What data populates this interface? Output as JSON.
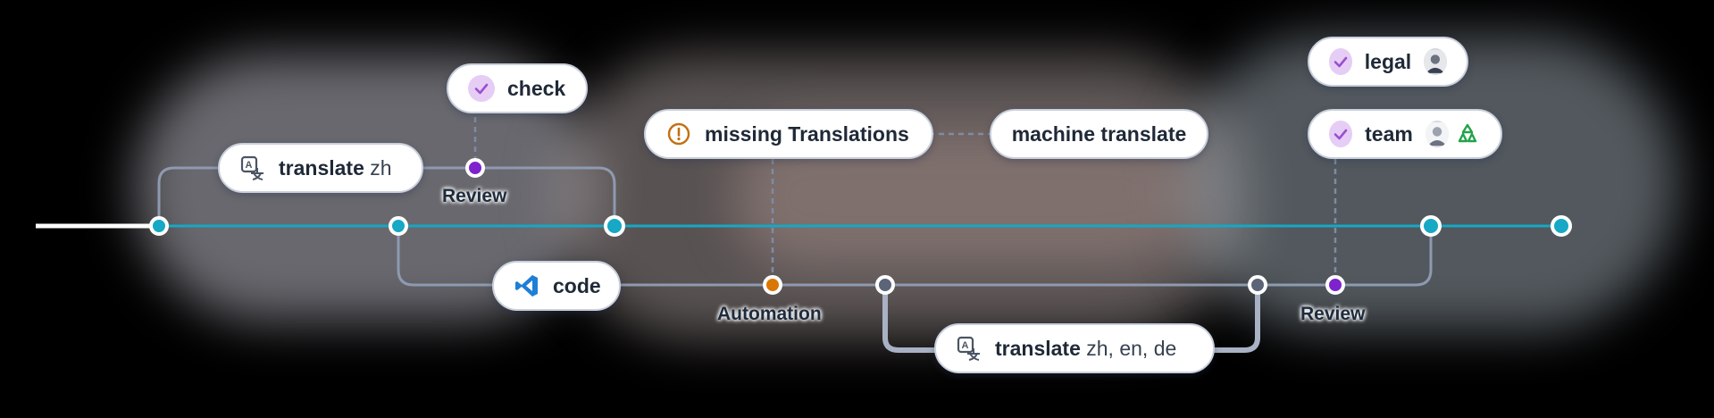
{
  "nodes": {
    "translate_zh": {
      "command": "translate",
      "args": "zh"
    },
    "check": {
      "label": "check"
    },
    "code": {
      "label": "code"
    },
    "missing_translations": {
      "label": "missing Translations"
    },
    "machine_translate": {
      "label": "machine translate"
    },
    "translate_multi": {
      "command": "translate",
      "args": "zh, en, de"
    },
    "legal": {
      "label": "legal"
    },
    "team": {
      "label": "team"
    }
  },
  "stage_labels": {
    "review_1": "Review",
    "automation": "Automation",
    "review_2": "Review"
  },
  "colors": {
    "main_line": "#16a8c4",
    "branch_line": "#8e9ab0",
    "review_dot": "#7e22ce",
    "automation_dot": "#d97706",
    "warning": "#c2700f",
    "check_bg": "#e6cdf5",
    "check_mark": "#9b4fd0",
    "vscode_blue": "#1f7fd6"
  },
  "icons": {
    "translate": "translate-icon",
    "check": "check-circle-icon",
    "code": "vscode-icon",
    "warning": "warning-circle-icon",
    "avatar": "avatar-icon",
    "recycle": "recycle-icon"
  }
}
